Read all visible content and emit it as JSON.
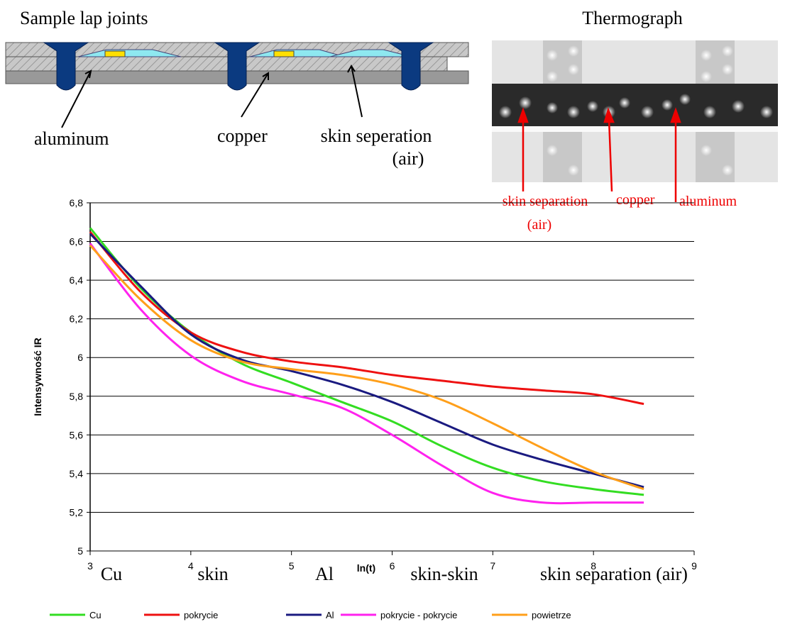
{
  "diagram": {
    "title": "Sample lap joints",
    "labels": [
      [
        "aluminum"
      ],
      [
        "copper"
      ],
      [
        "skin seperation",
        "(air)"
      ]
    ]
  },
  "thermograph": {
    "title": "Thermograph",
    "labels": [
      [
        "skin separation",
        "(air)"
      ],
      [
        "copper"
      ],
      [
        "aluminum"
      ]
    ]
  },
  "chart_data": {
    "type": "line",
    "y_label": "Intensywność IR",
    "x_label": "ln(t)",
    "x": [
      3,
      3.5,
      4,
      4.5,
      5,
      5.5,
      6,
      6.5,
      7,
      7.5,
      8,
      8.5
    ],
    "series": [
      {
        "name": "Cu",
        "color": "#33dd22",
        "values": [
          6.67,
          6.36,
          6.13,
          5.97,
          5.87,
          5.77,
          5.67,
          5.54,
          5.43,
          5.36,
          5.32,
          5.29
        ]
      },
      {
        "name": "pokrycie",
        "color": "#ee1111",
        "values": [
          6.65,
          6.34,
          6.13,
          6.03,
          5.98,
          5.95,
          5.91,
          5.88,
          5.85,
          5.83,
          5.81,
          5.76
        ]
      },
      {
        "name": "Al",
        "color": "#1a1a80",
        "values": [
          6.64,
          6.37,
          6.12,
          5.99,
          5.93,
          5.86,
          5.77,
          5.66,
          5.55,
          5.47,
          5.4,
          5.33
        ]
      },
      {
        "name": "pokrycie - pokrycie",
        "color": "#ff22ee",
        "values": [
          6.59,
          6.25,
          6.01,
          5.88,
          5.81,
          5.74,
          5.6,
          5.44,
          5.3,
          5.25,
          5.25,
          5.25
        ]
      },
      {
        "name": "powietrze",
        "color": "#ff9f1a",
        "values": [
          6.58,
          6.3,
          6.09,
          5.98,
          5.94,
          5.91,
          5.86,
          5.78,
          5.66,
          5.53,
          5.41,
          5.32
        ]
      }
    ],
    "xlim": [
      3,
      9
    ],
    "xticks": [
      3,
      4,
      5,
      6,
      7,
      8,
      9
    ],
    "ylim": [
      5,
      6.8
    ],
    "yticks": [
      5,
      {
        "value": 5.2,
        "label": "5,2"
      },
      {
        "value": 5.4,
        "label": "5,4"
      },
      {
        "value": 5.6,
        "label": "5,6"
      },
      {
        "value": 5.8,
        "label": "5,8"
      },
      6,
      {
        "value": 6.2,
        "label": "6,2"
      },
      {
        "value": 6.4,
        "label": "6,4"
      },
      {
        "value": 6.6,
        "label": "6,6"
      },
      {
        "value": 6.8,
        "label": "6,8"
      }
    ],
    "grid": true,
    "legend": "bottom",
    "x_annotations": [
      "Cu",
      "skin",
      "Al",
      "skin-skin",
      "skin separation (air)"
    ]
  }
}
